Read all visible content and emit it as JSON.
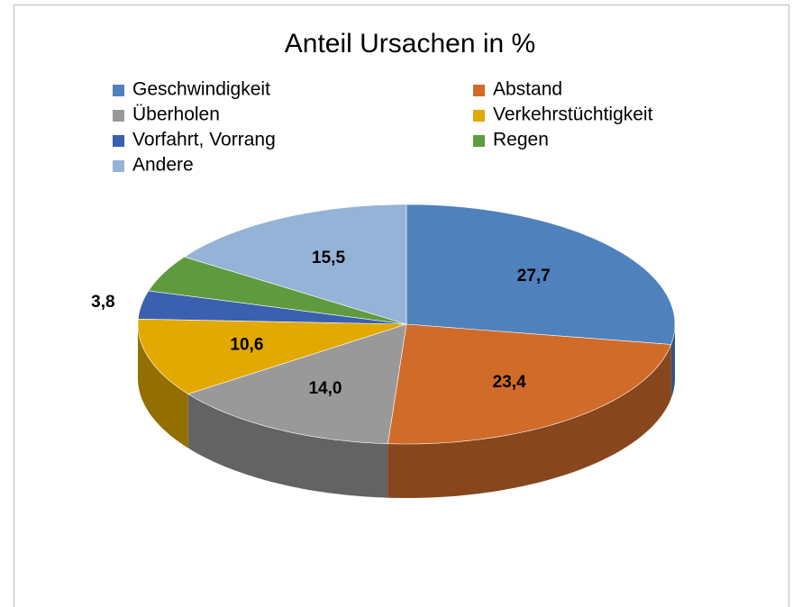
{
  "chart_data": {
    "type": "pie",
    "title": "Anteil Ursachen in %",
    "categories": [
      "Geschwindigkeit",
      "Abstand",
      "Überholen",
      "Verkehrstüchtigkeit",
      "Vorfahrt, Vorrang",
      "Regen",
      "Andere"
    ],
    "values": [
      27.7,
      23.4,
      14.0,
      10.6,
      3.8,
      5.0,
      15.5
    ],
    "value_labels": [
      "27,7",
      "23,4",
      "14,0",
      "10,6",
      "3,8",
      null,
      "15,5"
    ],
    "colors": [
      "#4f81bd",
      "#d06b2a",
      "#999999",
      "#e2a900",
      "#3b60b0",
      "#5f9a3f",
      "#95b3d7"
    ],
    "legend": "top"
  }
}
